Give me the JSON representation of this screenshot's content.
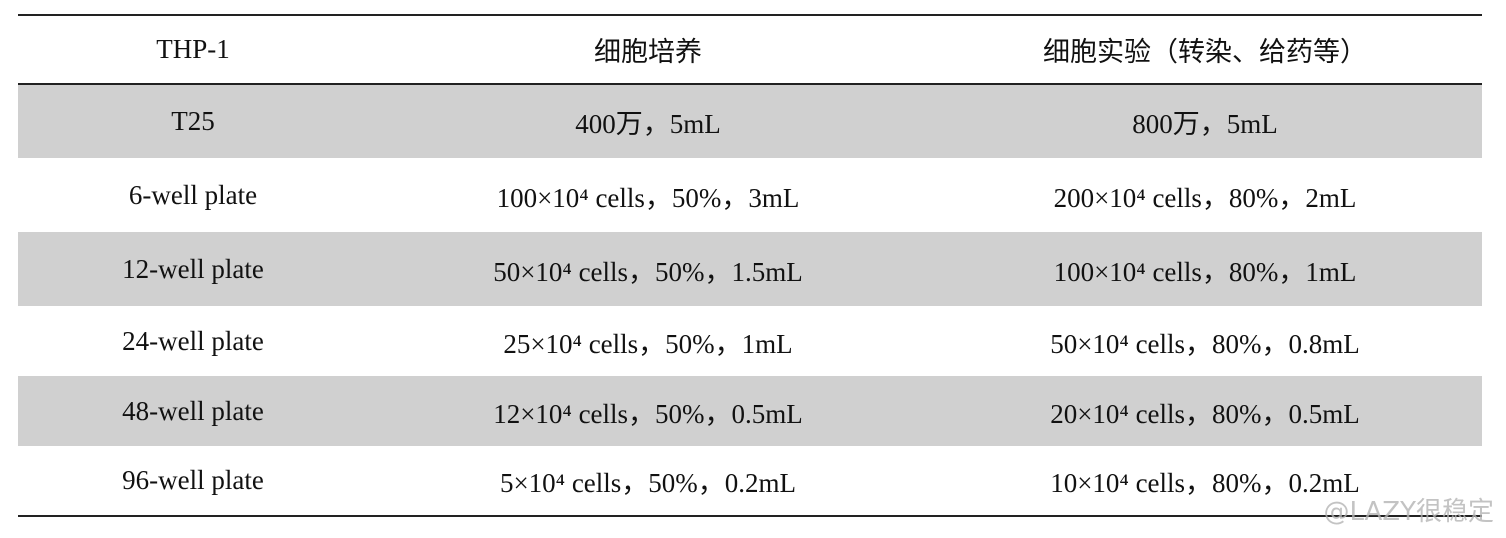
{
  "table": {
    "header": [
      "THP-1",
      "细胞培养",
      "细胞实验（转染、给药等）"
    ],
    "rows": [
      [
        "T25",
        "400万，5mL",
        "800万，5mL"
      ],
      [
        "6-well plate",
        "100×10⁴ cells，50%，3mL",
        "200×10⁴ cells，80%，2mL"
      ],
      [
        "12-well plate",
        "50×10⁴ cells，50%，1.5mL",
        "100×10⁴ cells，80%，1mL"
      ],
      [
        "24-well plate",
        "25×10⁴ cells，50%，1mL",
        "50×10⁴ cells，80%，0.8mL"
      ],
      [
        "48-well plate",
        "12×10⁴ cells，50%，0.5mL",
        "20×10⁴ cells，80%，0.5mL"
      ],
      [
        "96-well plate",
        "5×10⁴ cells，50%，0.2mL",
        "10×10⁴ cells，80%，0.2mL"
      ]
    ]
  },
  "watermark": "@LAZY很稳定"
}
